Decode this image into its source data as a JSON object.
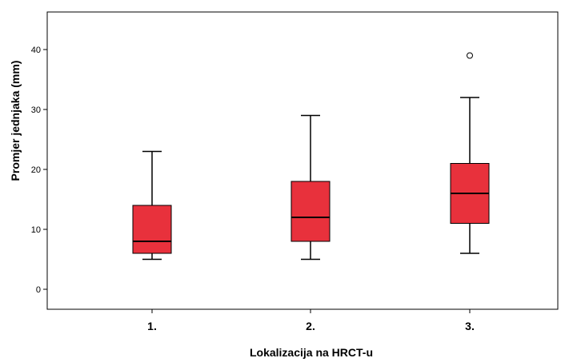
{
  "chart_data": {
    "type": "boxplot",
    "xlabel": "Lokalizacija na HRCT-u",
    "ylabel": "Promjer jednjaka (mm)",
    "categories": [
      "1.",
      "2.",
      "3."
    ],
    "boxes": [
      {
        "category": "1.",
        "min": 5,
        "q1": 6,
        "median": 8,
        "q3": 14,
        "max": 23,
        "outliers": []
      },
      {
        "category": "2.",
        "min": 5,
        "q1": 8,
        "median": 12,
        "q3": 18,
        "max": 29,
        "outliers": []
      },
      {
        "category": "3.",
        "min": 6,
        "q1": 11,
        "median": 16,
        "q3": 21,
        "max": 32,
        "outliers": [
          39
        ]
      }
    ],
    "yticks": [
      0,
      10,
      20,
      30,
      40
    ],
    "ylim": [
      -3,
      46
    ],
    "box_color": "#e8313c",
    "grid": false
  }
}
